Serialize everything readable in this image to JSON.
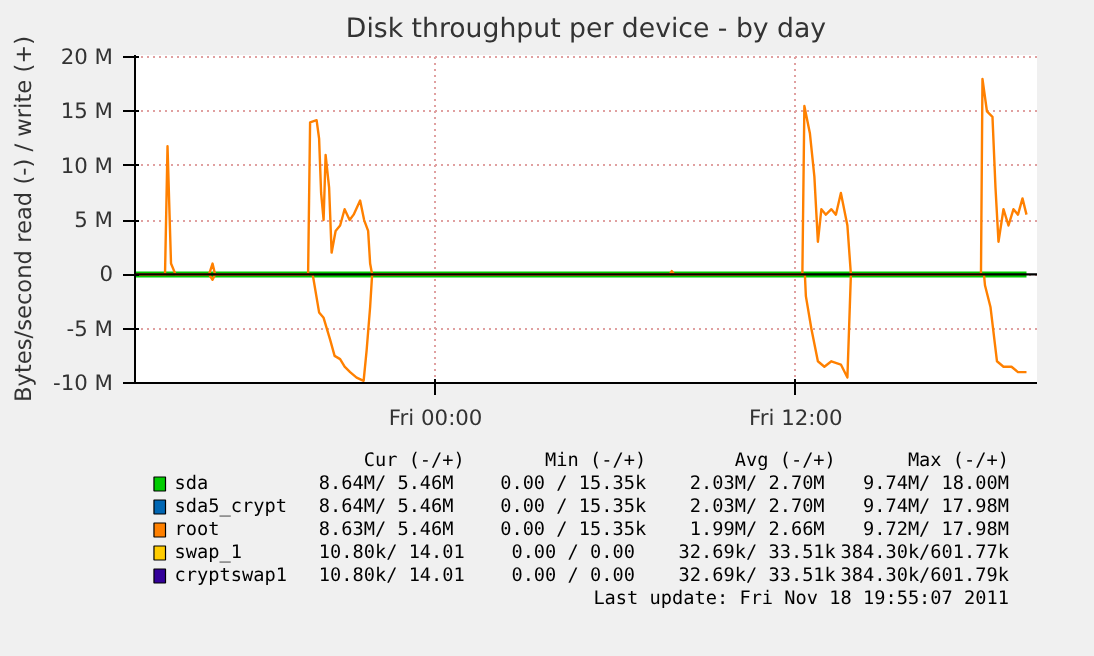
{
  "chart_data": {
    "type": "line",
    "title": "Disk throughput per device - by day",
    "ylabel": "Bytes/second read (-) / write (+)",
    "xlim": [
      "2011-11-17T13:59",
      "2011-11-18T20:02"
    ],
    "xticks": [
      {
        "value": "2011-11-18T00:00",
        "label": "Fri 00:00"
      },
      {
        "value": "2011-11-18T12:00",
        "label": "Fri 12:00"
      }
    ],
    "ylim": [
      -10,
      20.2
    ],
    "yticks": [
      {
        "value": -10,
        "label": "-10 M"
      },
      {
        "value": -5,
        "label": "-5 M"
      },
      0,
      {
        "value": 5,
        "label": "5 M"
      },
      {
        "value": 10,
        "label": "10 M"
      },
      {
        "value": 15,
        "label": "15 M"
      },
      {
        "value": 20,
        "label": "20 M"
      }
    ],
    "grid": true,
    "legend": "bottom",
    "marker": "none",
    "line_style": "solid",
    "series": [
      {
        "name": "sda",
        "color": "#00cc00",
        "x": [
          "2011-11-17T14:01",
          "2011-11-18T19:41"
        ],
        "values": [
          0,
          0
        ]
      },
      {
        "name": "sda5_crypt",
        "color": "#0066b3"
      },
      {
        "name": "root",
        "color": "#ff8000",
        "x": [
          "2011-11-17T14:01",
          "2011-11-17T14:59",
          "2011-11-17T15:04",
          "2011-11-17T15:11",
          "2011-11-17T15:20",
          "2011-11-17T16:27",
          "2011-11-17T16:34",
          "2011-11-17T16:39",
          "2011-11-17T19:45",
          "2011-11-17T19:49",
          "2011-11-17T20:02",
          "2011-11-17T20:07",
          "2011-11-17T20:11",
          "2011-11-17T20:16",
          "2011-11-17T20:20",
          "2011-11-17T20:27",
          "2011-11-17T20:32",
          "2011-11-17T20:40",
          "2011-11-17T20:49",
          "2011-11-17T20:58",
          "2011-11-17T21:08",
          "2011-11-17T21:16",
          "2011-11-17T21:29",
          "2011-11-17T21:37",
          "2011-11-17T21:45",
          "2011-11-17T21:49",
          "2011-11-17T21:53",
          "2011-11-18T07:48",
          "2011-11-18T07:52",
          "2011-11-18T07:57",
          "2011-11-18T12:13",
          "2011-11-18T12:17",
          "2011-11-18T12:28",
          "2011-11-18T12:37",
          "2011-11-18T12:44",
          "2011-11-18T12:51",
          "2011-11-18T13:00",
          "2011-11-18T13:11",
          "2011-11-18T13:20",
          "2011-11-18T13:30",
          "2011-11-18T13:43",
          "2011-11-18T13:50",
          "2011-11-18T18:10",
          "2011-11-18T18:13",
          "2011-11-18T18:22",
          "2011-11-18T18:33",
          "2011-11-18T18:39",
          "2011-11-18T18:45",
          "2011-11-18T18:55",
          "2011-11-18T19:05",
          "2011-11-18T19:15",
          "2011-11-18T19:24",
          "2011-11-18T19:33",
          "2011-11-18T19:41"
        ],
        "values": [
          0,
          0,
          11.8,
          1,
          0,
          0,
          1,
          0,
          0,
          14,
          14.2,
          12.5,
          7.5,
          5,
          11,
          8,
          2,
          4,
          4.5,
          6,
          5,
          5.5,
          6.8,
          5,
          4,
          1,
          0,
          0,
          0.3,
          0,
          0,
          15.5,
          13,
          9,
          3,
          6,
          5.5,
          6,
          5.5,
          7.5,
          4.5,
          0,
          0,
          18,
          15,
          14.5,
          8,
          3,
          6,
          4.5,
          6,
          5.5,
          7,
          5.5
        ]
      },
      {
        "color": "#ff8000",
        "x": [
          "2011-11-17T14:01",
          "2011-11-17T16:27",
          "2011-11-17T16:34",
          "2011-11-17T16:39",
          "2011-11-17T19:54",
          "2011-11-17T19:56",
          "2011-11-17T20:07",
          "2011-11-17T20:16",
          "2011-11-17T20:29",
          "2011-11-17T20:38",
          "2011-11-17T20:49",
          "2011-11-17T20:58",
          "2011-11-17T21:09",
          "2011-11-17T21:22",
          "2011-11-17T21:36",
          "2011-11-17T21:42",
          "2011-11-17T21:49",
          "2011-11-17T21:53",
          "2011-11-18T12:18",
          "2011-11-18T12:20",
          "2011-11-18T12:31",
          "2011-11-18T12:44",
          "2011-11-18T12:57",
          "2011-11-18T13:11",
          "2011-11-18T13:30",
          "2011-11-18T13:43",
          "2011-11-18T13:50",
          "2011-11-18T18:16",
          "2011-11-18T18:18",
          "2011-11-18T18:29",
          "2011-11-18T18:42",
          "2011-11-18T18:55",
          "2011-11-18T19:11",
          "2011-11-18T19:24",
          "2011-11-18T19:41"
        ],
        "values": [
          0,
          0,
          -0.5,
          0,
          0,
          -0.5,
          -3.5,
          -4,
          -6,
          -7.5,
          -7.8,
          -8.5,
          -9,
          -9.5,
          -9.8,
          -7,
          -3,
          0,
          0,
          -2,
          -5,
          -8,
          -8.5,
          -8,
          -8.3,
          -9.5,
          0,
          0,
          -1,
          -3,
          -8,
          -8.5,
          -8.5,
          -9,
          -9
        ]
      },
      {
        "name": "swap_1",
        "color": "#ffcc00"
      },
      {
        "name": "cryptswap1",
        "color": "#330099"
      }
    ],
    "ref_lines": [
      {
        "axis": "y",
        "value": 0,
        "color": "#000000"
      }
    ],
    "annotations": [
      "Cur (-/+)",
      "Min (-/+)",
      "Avg (-/+)",
      "Max (-/+)",
      "8.64M/  5.46M",
      "0.00 / 15.35k",
      "2.03M/  2.70M",
      "9.74M/ 18.00M",
      "8.64M/  5.46M",
      "0.00 / 15.35k",
      "2.03M/  2.70M",
      "9.74M/ 17.98M",
      "8.63M/  5.46M",
      "0.00 / 15.35k",
      "1.99M/  2.66M",
      "9.72M/ 17.98M",
      "10.80k/ 14.01",
      "0.00 /  0.00",
      "32.69k/ 33.51k",
      "384.30k/601.77k",
      "10.80k/ 14.01",
      "0.00 /  0.00",
      "32.69k/ 33.51k",
      "384.30k/601.79k",
      "Last update: Fri Nov 18 19:55:07 2011"
    ]
  }
}
